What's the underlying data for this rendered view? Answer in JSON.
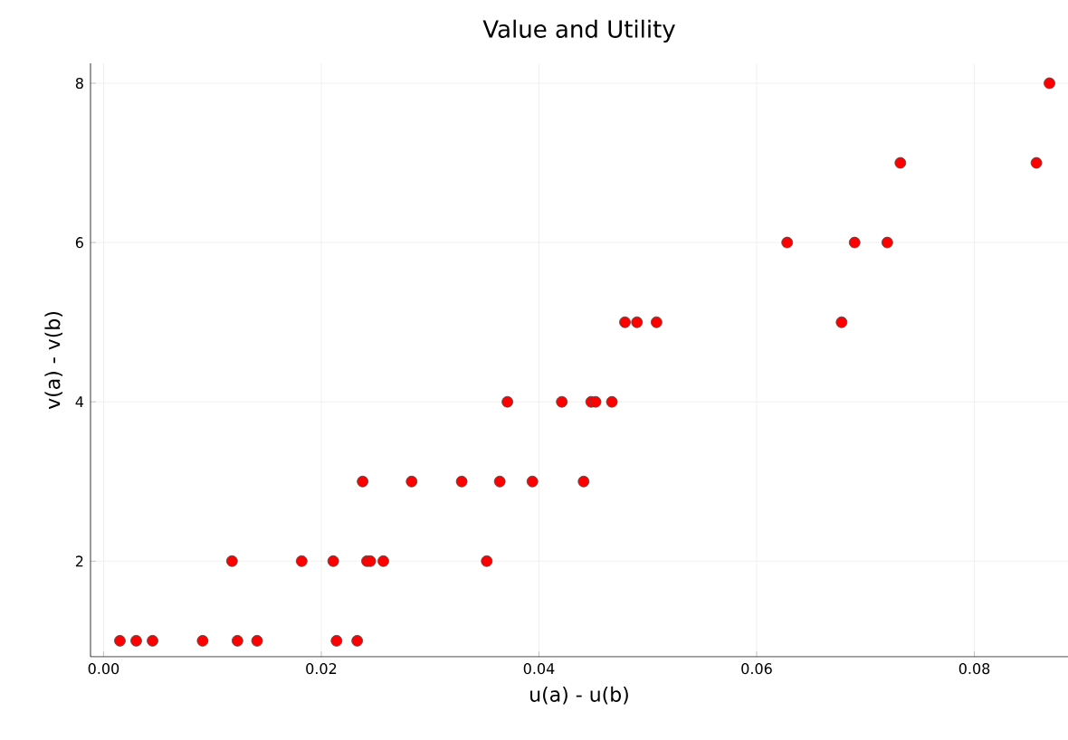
{
  "chart_data": {
    "type": "scatter",
    "title": "Value and Utility",
    "xlabel": "u(a) - u(b)",
    "ylabel": "v(a) - v(b)",
    "x": [
      0.0015,
      0.003,
      0.0045,
      0.0091,
      0.0123,
      0.0141,
      0.0214,
      0.0233,
      0.0118,
      0.0182,
      0.0211,
      0.0242,
      0.0245,
      0.0257,
      0.0352,
      0.0238,
      0.0283,
      0.0329,
      0.0364,
      0.0394,
      0.0441,
      0.0371,
      0.0421,
      0.0448,
      0.0452,
      0.0467,
      0.0479,
      0.049,
      0.0508,
      0.0678,
      0.0628,
      0.069,
      0.072,
      0.0732,
      0.0857,
      0.0869
    ],
    "values": [
      1,
      1,
      1,
      1,
      1,
      1,
      1,
      1,
      2,
      2,
      2,
      2,
      2,
      2,
      2,
      3,
      3,
      3,
      3,
      3,
      3,
      4,
      4,
      4,
      4,
      4,
      5,
      5,
      5,
      5,
      6,
      6,
      6,
      7,
      7,
      8
    ],
    "color": "#ff0000",
    "marker": "circle",
    "grid": true,
    "xlim": [
      -0.0012,
      0.0886
    ],
    "ylim": [
      0.8,
      8.25
    ],
    "xticks": [
      {
        "value": 0,
        "label": "0.00"
      },
      {
        "value": 0.02,
        "label": "0.02"
      },
      {
        "value": 0.04,
        "label": "0.04"
      },
      {
        "value": 0.06,
        "label": "0.06"
      },
      {
        "value": 0.08,
        "label": "0.08"
      }
    ],
    "yticks": [
      2,
      4,
      6,
      8
    ]
  }
}
